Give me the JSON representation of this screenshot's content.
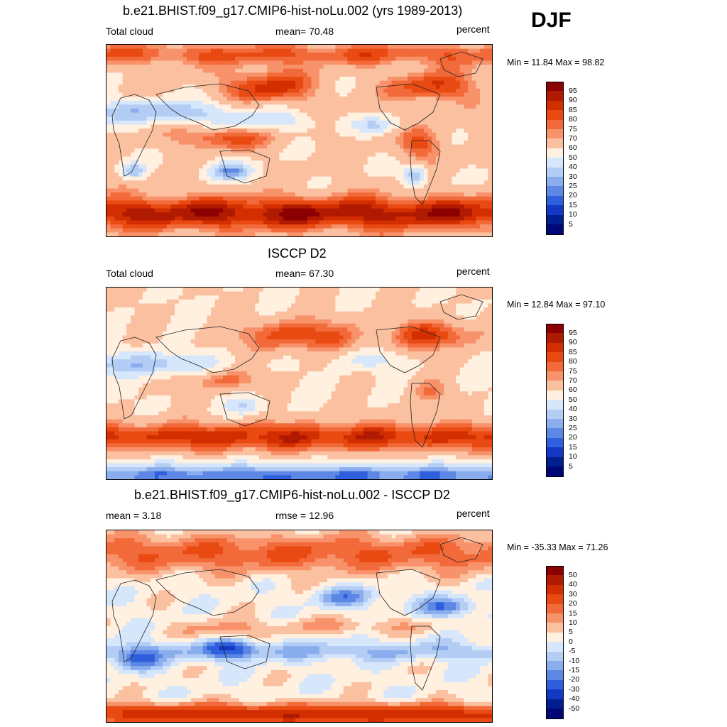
{
  "season": "DJF",
  "chart_data": [
    {
      "type": "heatmap",
      "title": "b.e21.BHIST.f09_g17.CMIP6-hist-noLu.002 (yrs 1989-2013)",
      "left_label": "Total cloud",
      "center_label": "mean=  70.48",
      "right_label": "percent",
      "minmax": "Min =  11.84 Max =  98.82",
      "colorbar_levels": [
        "95",
        "90",
        "85",
        "80",
        "75",
        "70",
        "60",
        "50",
        "40",
        "30",
        "25",
        "20",
        "15",
        "10",
        "5"
      ],
      "colors": [
        "#8b0000",
        "#b01a00",
        "#d22e00",
        "#e84a12",
        "#f26a3a",
        "#f8926a",
        "#fbc0a0",
        "#fff0e0",
        "#d6e6fb",
        "#b3cdf5",
        "#8aaeed",
        "#5c87e5",
        "#2f5fdc",
        "#1238c4",
        "#001e90",
        "#000878"
      ],
      "min": 11.84,
      "max": 98.82,
      "mean": 70.48
    },
    {
      "type": "heatmap",
      "title": "ISCCP D2",
      "left_label": "Total cloud",
      "center_label": "mean=  67.30",
      "right_label": "percent",
      "minmax": "Min =  12.84 Max =  97.10",
      "colorbar_levels": [
        "95",
        "90",
        "85",
        "80",
        "75",
        "70",
        "60",
        "50",
        "40",
        "30",
        "25",
        "20",
        "15",
        "10",
        "5"
      ],
      "colors": [
        "#8b0000",
        "#b01a00",
        "#d22e00",
        "#e84a12",
        "#f26a3a",
        "#f8926a",
        "#fbc0a0",
        "#fff0e0",
        "#d6e6fb",
        "#b3cdf5",
        "#8aaeed",
        "#5c87e5",
        "#2f5fdc",
        "#1238c4",
        "#001e90",
        "#000878"
      ],
      "min": 12.84,
      "max": 97.1,
      "mean": 67.3
    },
    {
      "type": "heatmap",
      "title": "b.e21.BHIST.f09_g17.CMIP6-hist-noLu.002 - ISCCP D2",
      "left_label": "mean =   3.18",
      "center_label": "rmse =  12.96",
      "right_label": "percent",
      "minmax": "Min = -35.33 Max =  71.26",
      "colorbar_levels": [
        "50",
        "40",
        "30",
        "20",
        "15",
        "10",
        "5",
        "0",
        "-5",
        "-10",
        "-15",
        "-20",
        "-30",
        "-40",
        "-50"
      ],
      "colors": [
        "#8b0000",
        "#b01a00",
        "#d22e00",
        "#e84a12",
        "#f26a3a",
        "#f8926a",
        "#fbc0a0",
        "#fff0e0",
        "#d6e6fb",
        "#b3cdf5",
        "#8aaeed",
        "#5c87e5",
        "#2f5fdc",
        "#1238c4",
        "#001e90",
        "#000878"
      ],
      "min": -35.33,
      "max": 71.26,
      "mean": 3.18,
      "rmse": 12.96
    }
  ]
}
